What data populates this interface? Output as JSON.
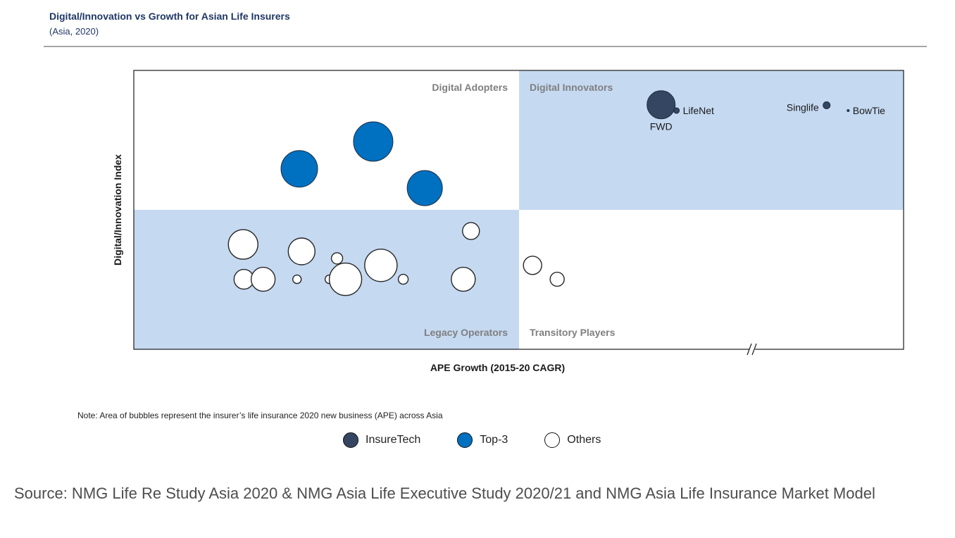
{
  "header": {
    "title": "Digital/Innovation vs Growth for Asian Life Insurers",
    "subtitle": "(Asia, 2020)"
  },
  "chart_data": {
    "type": "scatter",
    "xlabel": "APE Growth (2015-20 CAGR)",
    "ylabel": "Digital/Innovation Index",
    "axis_break_on_x": true,
    "grid": false,
    "quadrants": {
      "top_left": "Digital Adopters",
      "top_right": "Digital Innovators",
      "bottom_left": "Legacy Operators",
      "bottom_right": "Transitory Players"
    },
    "quadrant_colors": {
      "shaded": "#c5d9f1",
      "plain": "#ffffff"
    },
    "colors": {
      "InsureTech": "#344661",
      "Top-3": "#0070c0",
      "Others": "#ffffff"
    },
    "bubbles": [
      {
        "x": 0.685,
        "y": 0.877,
        "size": 20,
        "category": "InsureTech",
        "label": "FWD",
        "label_pos": "below"
      },
      {
        "x": 0.705,
        "y": 0.856,
        "size": 4,
        "category": "InsureTech",
        "label": "LifeNet",
        "label_pos": "right"
      },
      {
        "x": 0.9,
        "y": 0.875,
        "size": 5,
        "category": "InsureTech",
        "label": "Singlife",
        "label_pos": "left"
      },
      {
        "x": 0.928,
        "y": 0.856,
        "size": 1.5,
        "category": "InsureTech",
        "label": "BowTie",
        "label_pos": "right"
      },
      {
        "x": 0.311,
        "y": 0.745,
        "size": 28,
        "category": "Top-3"
      },
      {
        "x": 0.215,
        "y": 0.647,
        "size": 26,
        "category": "Top-3"
      },
      {
        "x": 0.378,
        "y": 0.578,
        "size": 25,
        "category": "Top-3"
      },
      {
        "x": 0.438,
        "y": 0.424,
        "size": 12,
        "category": "Others"
      },
      {
        "x": 0.142,
        "y": 0.376,
        "size": 21,
        "category": "Others"
      },
      {
        "x": 0.218,
        "y": 0.351,
        "size": 19,
        "category": "Others"
      },
      {
        "x": 0.264,
        "y": 0.326,
        "size": 8,
        "category": "Others"
      },
      {
        "x": 0.321,
        "y": 0.301,
        "size": 23,
        "category": "Others"
      },
      {
        "x": 0.518,
        "y": 0.301,
        "size": 13,
        "category": "Others"
      },
      {
        "x": 0.143,
        "y": 0.251,
        "size": 14,
        "category": "Others"
      },
      {
        "x": 0.168,
        "y": 0.251,
        "size": 17,
        "category": "Others"
      },
      {
        "x": 0.212,
        "y": 0.251,
        "size": 6,
        "category": "Others"
      },
      {
        "x": 0.254,
        "y": 0.251,
        "size": 6,
        "category": "Others"
      },
      {
        "x": 0.275,
        "y": 0.251,
        "size": 23,
        "category": "Others"
      },
      {
        "x": 0.35,
        "y": 0.251,
        "size": 7,
        "category": "Others"
      },
      {
        "x": 0.428,
        "y": 0.251,
        "size": 17,
        "category": "Others"
      },
      {
        "x": 0.55,
        "y": 0.251,
        "size": 10,
        "category": "Others"
      }
    ]
  },
  "note": "Note: Area of bubbles represent the insurer’s life insurance 2020 new business (APE) across Asia",
  "legend": [
    {
      "label": "InsureTech",
      "color": "#344661"
    },
    {
      "label": "Top-3",
      "color": "#0070c0"
    },
    {
      "label": "Others",
      "color": "#ffffff"
    }
  ],
  "source": "Source: NMG Life Re Study Asia 2020 & NMG Asia Life Executive Study 2020/21 and NMG Asia Life Insurance Market Model"
}
